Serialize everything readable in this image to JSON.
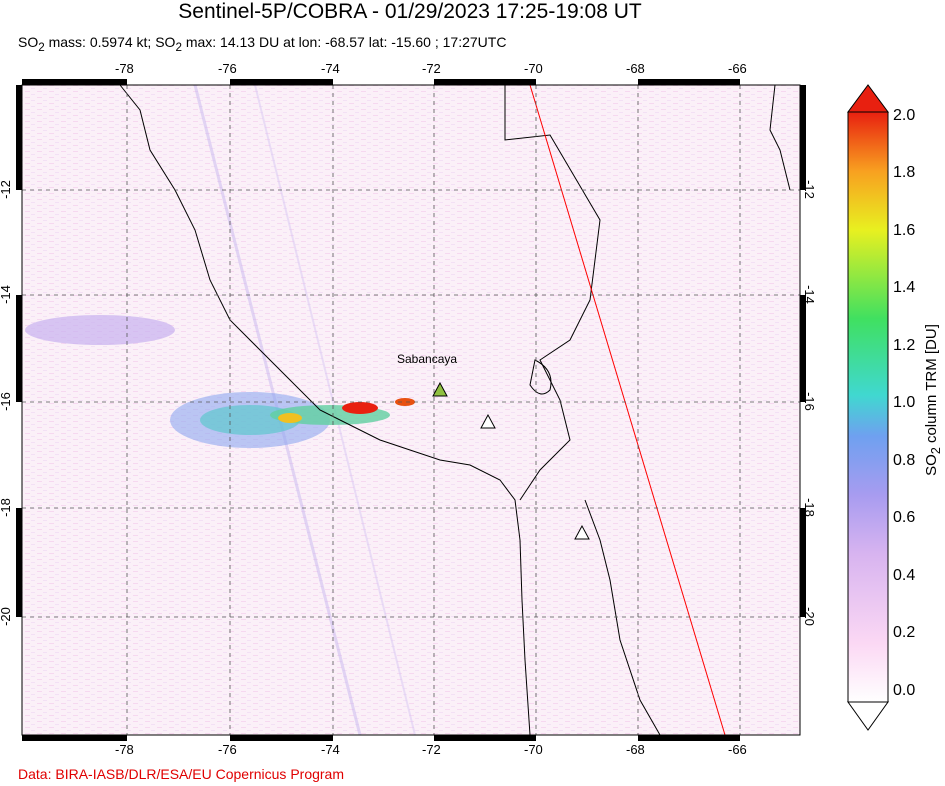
{
  "header": {
    "title": "Sentinel-5P/COBRA - 01/29/2023 17:25-19:08 UT",
    "subtitle_prefix": "SO",
    "subtitle_sub": "2",
    "subtitle_mid": " mass: 0.5974 kt; SO",
    "subtitle_sub2": "2",
    "subtitle_end": " max: 14.13 DU at lon: -68.57 lat: -15.60 ; 17:27UTC"
  },
  "map": {
    "lon_ticks": [
      "-78",
      "-76",
      "-74",
      "-72",
      "-70",
      "-68",
      "-66"
    ],
    "lat_ticks": [
      "-12",
      "-14",
      "-16",
      "-18",
      "-20"
    ],
    "volcano_label": "Sabancaya"
  },
  "colorbar": {
    "labels": [
      "2.0",
      "1.8",
      "1.6",
      "1.4",
      "1.2",
      "1.0",
      "0.8",
      "0.6",
      "0.4",
      "0.2",
      "0.0"
    ],
    "title_prefix": "SO",
    "title_sub": "2",
    "title_end": " column TRM [DU]",
    "min": 0.0,
    "max": 2.0
  },
  "footer": {
    "credit": "Data: BIRA-IASB/DLR/ESA/EU Copernicus Program"
  }
}
